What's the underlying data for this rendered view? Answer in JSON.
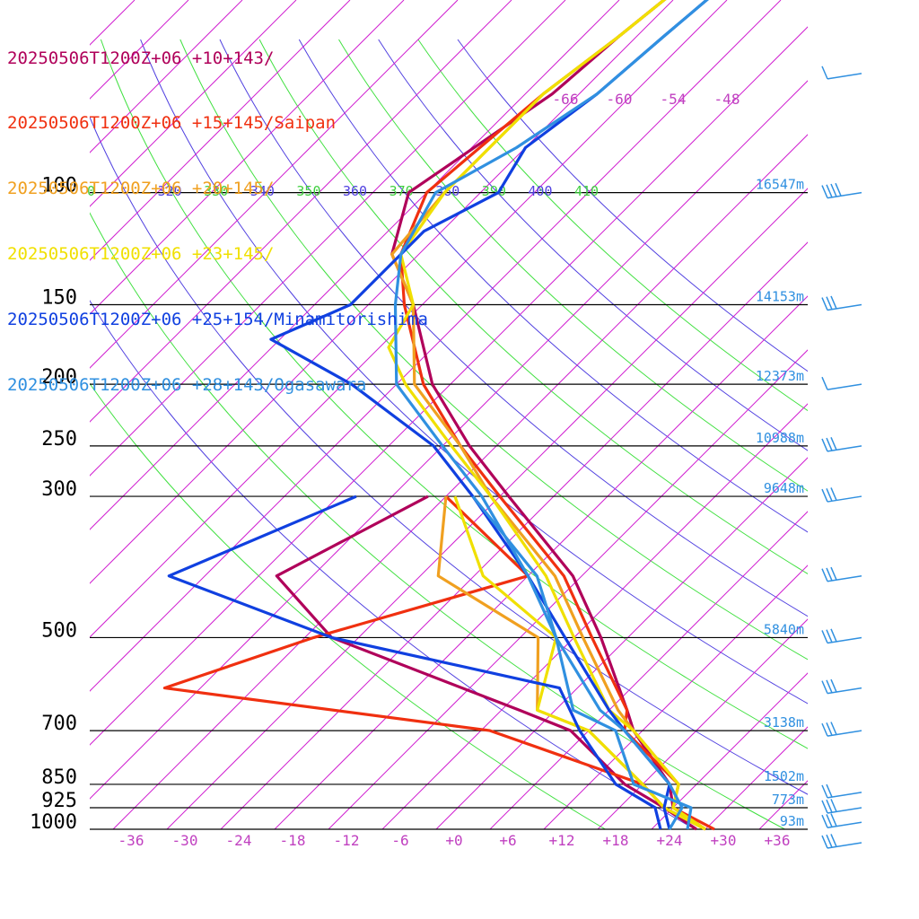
{
  "legend": [
    {
      "label": "20250506T1200Z+06 +10+143/",
      "color": "#b0005a"
    },
    {
      "label": "20250506T1200Z+06 +15+145/Saipan",
      "color": "#f03010"
    },
    {
      "label": "20250506T1200Z+06 +20+145/",
      "color": "#f0a020"
    },
    {
      "label": "20250506T1200Z+06 +23+145/",
      "color": "#f0e000"
    },
    {
      "label": "20250506T1200Z+06 +25+154/Minamitorishima",
      "color": "#1040e0"
    },
    {
      "label": "20250506T1200Z+06 +28+143/Ogasawara",
      "color": "#3090e0"
    }
  ],
  "chart_data": {
    "type": "skew-t",
    "pressure_levels": [
      {
        "p": 100,
        "label": "100",
        "height": "16547m"
      },
      {
        "p": 150,
        "label": "150",
        "height": "14153m"
      },
      {
        "p": 200,
        "label": "200",
        "height": "12373m"
      },
      {
        "p": 250,
        "label": "250",
        "height": "10988m"
      },
      {
        "p": 300,
        "label": "300",
        "height": "9648m"
      },
      {
        "p": 500,
        "label": "500",
        "height": "5840m"
      },
      {
        "p": 700,
        "label": "700",
        "height": "3138m"
      },
      {
        "p": 850,
        "label": "850",
        "height": "1502m"
      },
      {
        "p": 925,
        "label": "925",
        "height": "773m"
      },
      {
        "p": 1000,
        "label": "1000",
        "height": "93m"
      }
    ],
    "temperature_ticks": [
      "-36",
      "-30",
      "-24",
      "-18",
      "-12",
      "-6",
      "+0",
      "+6",
      "+12",
      "+18",
      "+24",
      "+30",
      "+36"
    ],
    "upper_isotherm_labels": [
      "-66",
      "-60",
      "-54",
      "-48"
    ],
    "theta_labels": [
      {
        "text": "0",
        "color": "green"
      },
      {
        "text": "320",
        "color": "blue"
      },
      {
        "text": "330",
        "color": "green"
      },
      {
        "text": "340",
        "color": "blue"
      },
      {
        "text": "350",
        "color": "green"
      },
      {
        "text": "360",
        "color": "blue"
      },
      {
        "text": "370",
        "color": "green"
      },
      {
        "text": "380",
        "color": "blue"
      },
      {
        "text": "390",
        "color": "green"
      },
      {
        "text": "400",
        "color": "blue"
      },
      {
        "text": "410",
        "color": "green"
      }
    ],
    "series": [
      {
        "name": "20250506T1200Z+06 +10+143/",
        "color": "#b0005a",
        "temperature": [
          [
            33,
            -66
          ],
          [
            57,
            -70
          ],
          [
            70,
            -71
          ],
          [
            100,
            -76
          ],
          [
            125,
            -71
          ],
          [
            150,
            -63
          ],
          [
            200,
            -52
          ],
          [
            250,
            -41
          ],
          [
            300,
            -31
          ],
          [
            400,
            -15
          ],
          [
            500,
            -5
          ],
          [
            650,
            6
          ],
          [
            700,
            9
          ],
          [
            850,
            19
          ],
          [
            925,
            22
          ],
          [
            1000,
            28
          ]
        ],
        "dewpoint": [
          [
            300,
            -40
          ],
          [
            400,
            -48
          ],
          [
            500,
            -35
          ],
          [
            650,
            -6
          ],
          [
            700,
            2
          ],
          [
            850,
            14
          ],
          [
            925,
            21
          ],
          [
            1000,
            27
          ]
        ]
      },
      {
        "name": "20250506T1200Z+06 +15+145/Saipan",
        "color": "#f03010",
        "temperature": [
          [
            33,
            -66
          ],
          [
            57,
            -70
          ],
          [
            70,
            -72
          ],
          [
            100,
            -74
          ],
          [
            125,
            -70
          ],
          [
            150,
            -64
          ],
          [
            200,
            -53
          ],
          [
            250,
            -42
          ],
          [
            300,
            -32
          ],
          [
            400,
            -16
          ],
          [
            500,
            -6
          ],
          [
            650,
            6
          ],
          [
            700,
            8
          ],
          [
            850,
            20
          ],
          [
            925,
            22
          ],
          [
            1000,
            29
          ]
        ],
        "dewpoint": [
          [
            300,
            -38
          ],
          [
            400,
            -20
          ],
          [
            500,
            -37
          ],
          [
            600,
            -48
          ],
          [
            700,
            -7
          ],
          [
            850,
            16
          ],
          [
            925,
            21
          ],
          [
            1000,
            28
          ]
        ]
      },
      {
        "name": "20250506T1200Z+06 +20+145/",
        "color": "#f0a020",
        "temperature": [
          [
            33,
            -66
          ],
          [
            57,
            -70
          ],
          [
            70,
            -72
          ],
          [
            100,
            -72
          ],
          [
            125,
            -71
          ],
          [
            150,
            -63
          ],
          [
            200,
            -54
          ],
          [
            250,
            -42
          ],
          [
            300,
            -33
          ],
          [
            400,
            -17
          ],
          [
            500,
            -7
          ],
          [
            650,
            5
          ],
          [
            700,
            9
          ],
          [
            850,
            20
          ],
          [
            925,
            22
          ],
          [
            1000,
            28
          ]
        ],
        "dewpoint": [
          [
            300,
            -38
          ],
          [
            400,
            -30
          ],
          [
            500,
            -12
          ],
          [
            650,
            -4
          ],
          [
            700,
            4
          ],
          [
            850,
            16
          ],
          [
            925,
            21
          ],
          [
            1000,
            28
          ]
        ]
      },
      {
        "name": "20250506T1200Z+06 +23+145/",
        "color": "#f0e000",
        "temperature": [
          [
            33,
            -66
          ],
          [
            57,
            -70
          ],
          [
            70,
            -72
          ],
          [
            100,
            -72
          ],
          [
            125,
            -70
          ],
          [
            150,
            -63
          ],
          [
            175,
            -61
          ],
          [
            200,
            -55
          ],
          [
            250,
            -43
          ],
          [
            300,
            -33
          ],
          [
            400,
            -18
          ],
          [
            500,
            -8
          ],
          [
            650,
            4
          ],
          [
            700,
            9
          ],
          [
            850,
            20
          ],
          [
            925,
            22
          ],
          [
            1000,
            28
          ]
        ],
        "dewpoint": [
          [
            300,
            -37
          ],
          [
            400,
            -25
          ],
          [
            500,
            -10
          ],
          [
            650,
            -4
          ],
          [
            700,
            4
          ],
          [
            850,
            16
          ],
          [
            925,
            21
          ],
          [
            1000,
            28
          ]
        ]
      },
      {
        "name": "20250506T1200Z+06 +25+154/Minamitorishima",
        "color": "#1040e0",
        "temperature": [
          [
            33,
            -62
          ],
          [
            57,
            -65
          ],
          [
            70,
            -66
          ],
          [
            85,
            -68
          ],
          [
            100,
            -66
          ],
          [
            115,
            -70
          ],
          [
            150,
            -70
          ],
          [
            170,
            -75
          ],
          [
            200,
            -61
          ],
          [
            250,
            -45
          ],
          [
            300,
            -35
          ],
          [
            400,
            -20
          ],
          [
            500,
            -9
          ],
          [
            650,
            4
          ],
          [
            700,
            8
          ],
          [
            850,
            19
          ],
          [
            925,
            21
          ],
          [
            1000,
            24
          ]
        ],
        "dewpoint": [
          [
            300,
            -48
          ],
          [
            400,
            -60
          ],
          [
            500,
            -35
          ],
          [
            600,
            -4
          ],
          [
            700,
            3
          ],
          [
            850,
            13
          ],
          [
            925,
            20
          ],
          [
            1000,
            23
          ]
        ]
      },
      {
        "name": "20250506T1200Z+06 +28+143/Ogasawara",
        "color": "#3090e0",
        "temperature": [
          [
            33,
            -62
          ],
          [
            57,
            -65
          ],
          [
            70,
            -66
          ],
          [
            85,
            -69
          ],
          [
            100,
            -73
          ],
          [
            125,
            -70
          ],
          [
            150,
            -65
          ],
          [
            200,
            -56
          ],
          [
            250,
            -44
          ],
          [
            300,
            -34
          ],
          [
            400,
            -20
          ],
          [
            500,
            -10
          ],
          [
            650,
            3
          ],
          [
            700,
            8
          ],
          [
            850,
            19
          ],
          [
            925,
            23
          ],
          [
            1000,
            24
          ]
        ],
        "dewpoint": [
          [
            300,
            -35
          ],
          [
            400,
            -19
          ],
          [
            500,
            -10
          ],
          [
            650,
            0
          ],
          [
            700,
            7
          ],
          [
            850,
            15
          ],
          [
            925,
            24
          ],
          [
            1000,
            26
          ]
        ]
      }
    ],
    "wind_barbs": [
      {
        "p": 40,
        "barbs": 0
      },
      {
        "p": 65,
        "barbs": 1
      },
      {
        "p": 100,
        "barbs": 4
      },
      {
        "p": 150,
        "barbs": 3
      },
      {
        "p": 200,
        "barbs": 1
      },
      {
        "p": 250,
        "barbs": 3
      },
      {
        "p": 300,
        "barbs": 3
      },
      {
        "p": 400,
        "barbs": 3
      },
      {
        "p": 500,
        "barbs": 3
      },
      {
        "p": 600,
        "barbs": 3
      },
      {
        "p": 700,
        "barbs": 3
      },
      {
        "p": 875,
        "barbs": 2
      },
      {
        "p": 925,
        "barbs": 3
      },
      {
        "p": 975,
        "barbs": 3
      },
      {
        "p": 1050,
        "barbs": 3
      }
    ]
  }
}
